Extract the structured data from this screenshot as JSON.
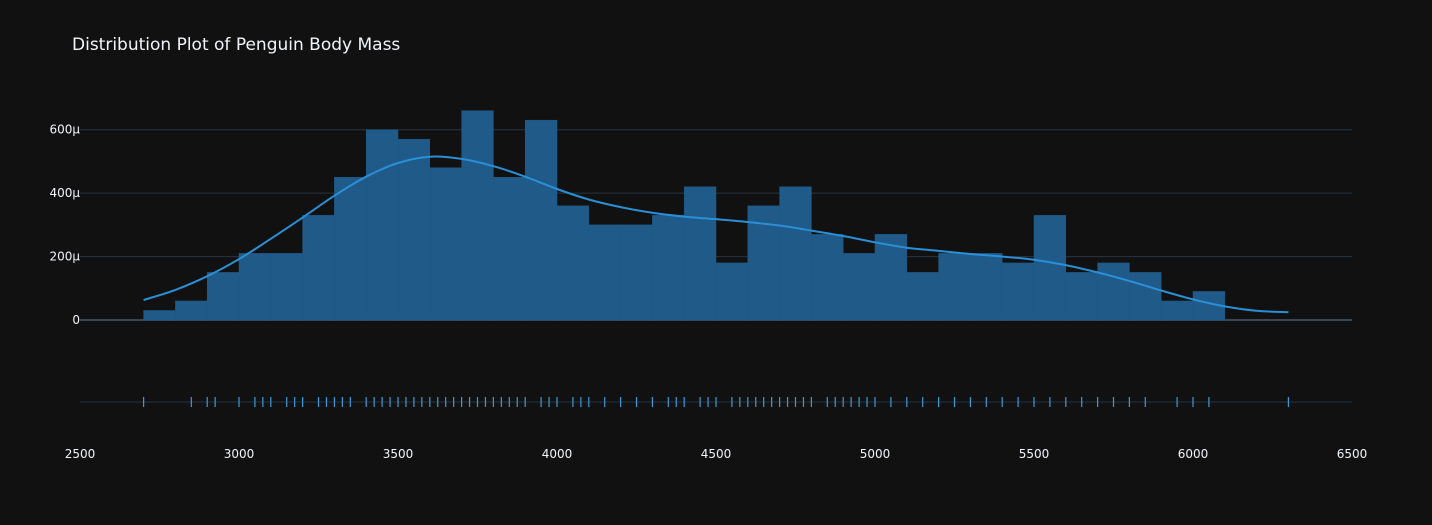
{
  "chart_data": {
    "type": "histogram",
    "title": "Distribution Plot of Penguin Body Mass",
    "xlabel": "",
    "ylabel": "",
    "xlim": [
      2500,
      6500
    ],
    "ylim": [
      0,
      0.0007
    ],
    "x_ticks": [
      "2500",
      "3000",
      "3500",
      "4000",
      "4500",
      "5000",
      "5500",
      "6000",
      "6500"
    ],
    "y_ticks": [
      "0",
      "200μ",
      "400μ",
      "600μ"
    ],
    "bin_width": 100,
    "bins": [
      {
        "x0": 2700,
        "x1": 2800,
        "density": 3e-05
      },
      {
        "x0": 2800,
        "x1": 2900,
        "density": 6e-05
      },
      {
        "x0": 2900,
        "x1": 3000,
        "density": 0.00015
      },
      {
        "x0": 3000,
        "x1": 3100,
        "density": 0.00021
      },
      {
        "x0": 3100,
        "x1": 3200,
        "density": 0.00021
      },
      {
        "x0": 3200,
        "x1": 3300,
        "density": 0.00033
      },
      {
        "x0": 3300,
        "x1": 3400,
        "density": 0.00045
      },
      {
        "x0": 3400,
        "x1": 3500,
        "density": 0.0006
      },
      {
        "x0": 3500,
        "x1": 3600,
        "density": 0.00057
      },
      {
        "x0": 3600,
        "x1": 3700,
        "density": 0.00048
      },
      {
        "x0": 3700,
        "x1": 3800,
        "density": 0.00066
      },
      {
        "x0": 3800,
        "x1": 3900,
        "density": 0.00045
      },
      {
        "x0": 3900,
        "x1": 4000,
        "density": 0.00063
      },
      {
        "x0": 4000,
        "x1": 4100,
        "density": 0.00036
      },
      {
        "x0": 4100,
        "x1": 4200,
        "density": 0.0003
      },
      {
        "x0": 4200,
        "x1": 4300,
        "density": 0.0003
      },
      {
        "x0": 4300,
        "x1": 4400,
        "density": 0.00033
      },
      {
        "x0": 4400,
        "x1": 4500,
        "density": 0.00042
      },
      {
        "x0": 4500,
        "x1": 4600,
        "density": 0.00018
      },
      {
        "x0": 4600,
        "x1": 4700,
        "density": 0.00036
      },
      {
        "x0": 4700,
        "x1": 4800,
        "density": 0.00042
      },
      {
        "x0": 4800,
        "x1": 4900,
        "density": 0.00027
      },
      {
        "x0": 4900,
        "x1": 5000,
        "density": 0.00021
      },
      {
        "x0": 5000,
        "x1": 5100,
        "density": 0.00027
      },
      {
        "x0": 5100,
        "x1": 5200,
        "density": 0.00015
      },
      {
        "x0": 5200,
        "x1": 5300,
        "density": 0.00021
      },
      {
        "x0": 5300,
        "x1": 5400,
        "density": 0.00021
      },
      {
        "x0": 5400,
        "x1": 5500,
        "density": 0.00018
      },
      {
        "x0": 5500,
        "x1": 5600,
        "density": 0.00033
      },
      {
        "x0": 5600,
        "x1": 5700,
        "density": 0.00015
      },
      {
        "x0": 5700,
        "x1": 5800,
        "density": 0.00018
      },
      {
        "x0": 5800,
        "x1": 5900,
        "density": 0.00015
      },
      {
        "x0": 5900,
        "x1": 6000,
        "density": 6e-05
      },
      {
        "x0": 6000,
        "x1": 6100,
        "density": 9e-05
      }
    ],
    "kde": {
      "x": [
        2700,
        2800,
        2900,
        3000,
        3100,
        3200,
        3300,
        3400,
        3500,
        3600,
        3700,
        3800,
        3900,
        4000,
        4100,
        4200,
        4300,
        4400,
        4500,
        4600,
        4700,
        4800,
        4900,
        5000,
        5100,
        5200,
        5300,
        5400,
        5500,
        5600,
        5700,
        5800,
        5900,
        6000,
        6100,
        6200,
        6300
      ],
      "y": [
        6.3e-05,
        9.5e-05,
        0.000138,
        0.000192,
        0.000256,
        0.000323,
        0.000392,
        0.000452,
        0.000495,
        0.000515,
        0.000508,
        0.000485,
        0.000452,
        0.000413,
        0.00038,
        0.000356,
        0.000338,
        0.000326,
        0.000318,
        0.000309,
        0.000298,
        0.000282,
        0.000265,
        0.000245,
        0.000228,
        0.000218,
        0.000208,
        0.0002,
        0.00019,
        0.000173,
        0.00015,
        0.000123,
        9.3e-05,
        6.5e-05,
        4.3e-05,
        2.9e-05,
        2.5e-05
      ]
    },
    "rug": [
      2700,
      2850,
      2900,
      2925,
      3000,
      3050,
      3075,
      3100,
      3150,
      3175,
      3200,
      3250,
      3275,
      3300,
      3325,
      3350,
      3400,
      3425,
      3450,
      3475,
      3500,
      3525,
      3550,
      3575,
      3600,
      3625,
      3650,
      3675,
      3700,
      3725,
      3750,
      3775,
      3800,
      3825,
      3850,
      3875,
      3900,
      3950,
      3975,
      4000,
      4050,
      4075,
      4100,
      4150,
      4200,
      4250,
      4300,
      4350,
      4375,
      4400,
      4450,
      4475,
      4500,
      4550,
      4575,
      4600,
      4625,
      4650,
      4675,
      4700,
      4725,
      4750,
      4775,
      4800,
      4850,
      4875,
      4900,
      4925,
      4950,
      4975,
      5000,
      5050,
      5100,
      5150,
      5200,
      5250,
      5300,
      5350,
      5400,
      5450,
      5500,
      5550,
      5600,
      5650,
      5700,
      5750,
      5800,
      5850,
      5950,
      6000,
      6050,
      6300
    ],
    "colors": {
      "background": "#111111",
      "bar_fill": "#1f5a88",
      "bar_edge": "#2a6da3",
      "kde_line": "#2a8fd6",
      "rug": "#3b9bd9",
      "grid": "#283442",
      "text": "#f2f5fa"
    }
  }
}
